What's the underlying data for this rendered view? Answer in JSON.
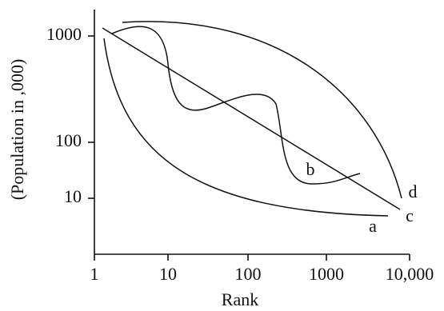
{
  "y_axis_label": "(Population in ,000)",
  "x_axis_label": "Rank",
  "y_tick_labels": [
    "1000",
    "100",
    "10"
  ],
  "x_tick_labels": [
    "1",
    "10",
    "100",
    "1000",
    "10,000"
  ],
  "curve_labels": [
    "a",
    "b",
    "c",
    "d"
  ]
}
